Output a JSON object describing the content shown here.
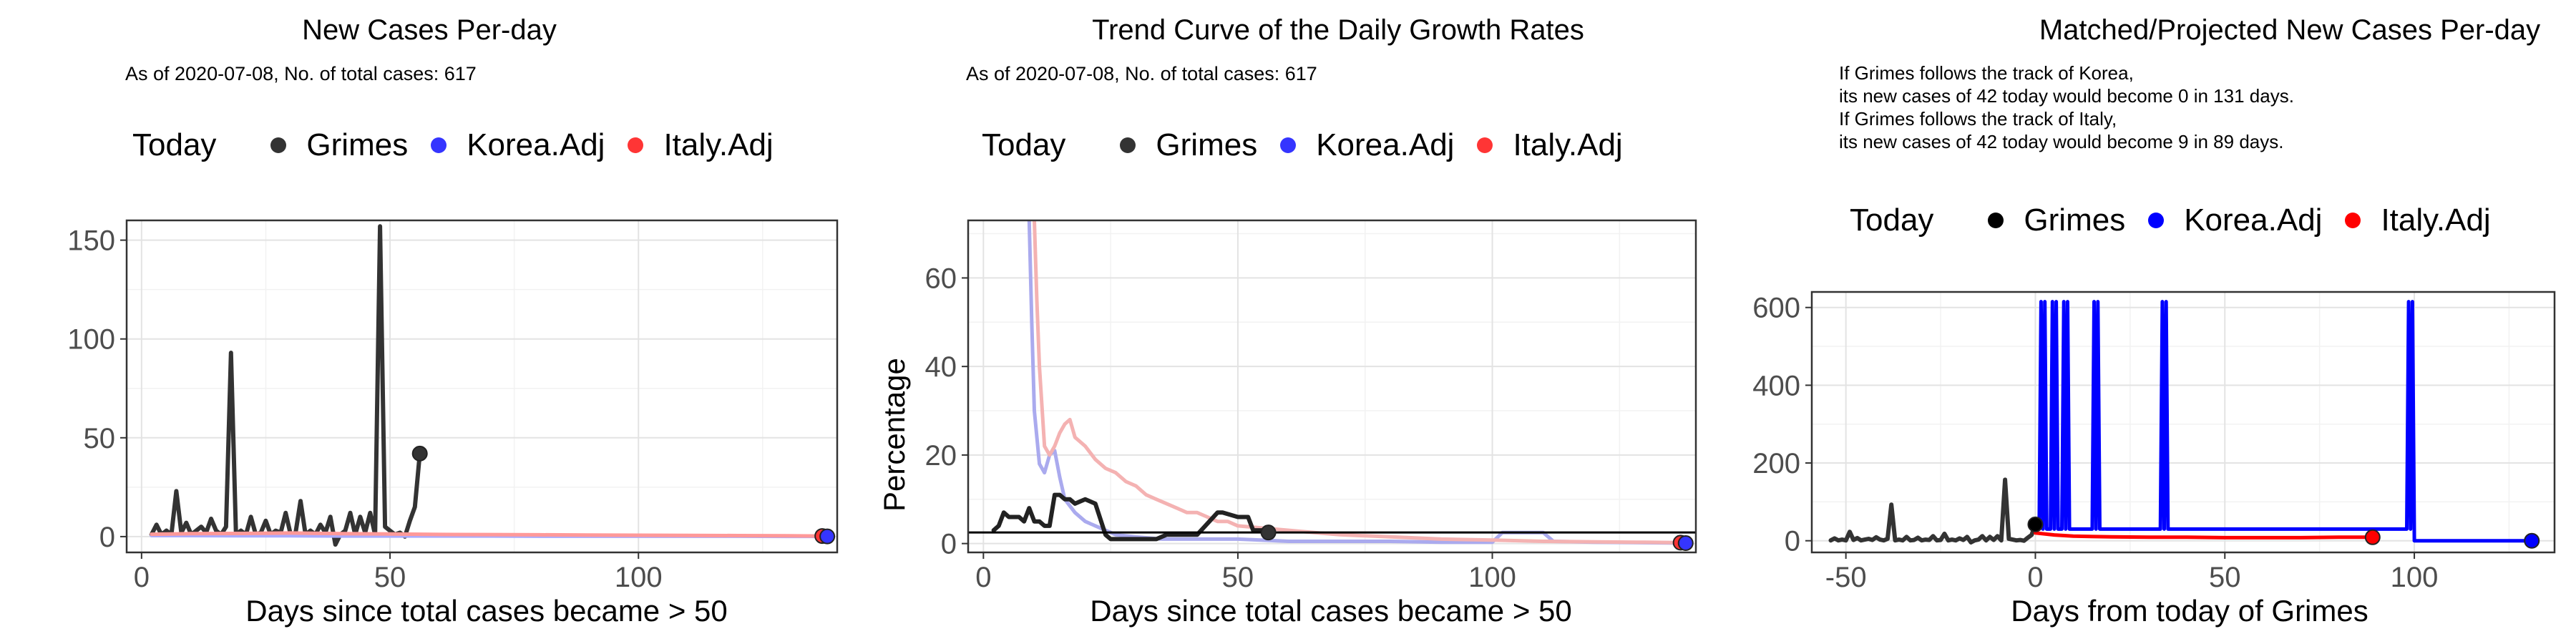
{
  "panels": [
    {
      "title": "New Cases Per-day",
      "subtitle": "As of 2020-07-08, No. of total cases: 617",
      "legend": {
        "title": "Today",
        "items": [
          {
            "label": "Grimes",
            "color": "#333333"
          },
          {
            "label": "Korea.Adj",
            "color": "#3535ff"
          },
          {
            "label": "Italy.Adj",
            "color": "#ff3535"
          }
        ]
      },
      "xlabel": "Days since total cases became > 50",
      "ylabel": ""
    },
    {
      "title": "Trend Curve of the Daily Growth Rates",
      "subtitle": "As of 2020-07-08, No. of total cases: 617",
      "legend": {
        "title": "Today",
        "items": [
          {
            "label": "Grimes",
            "color": "#333333"
          },
          {
            "label": "Korea.Adj",
            "color": "#3535ff"
          },
          {
            "label": "Italy.Adj",
            "color": "#ff3535"
          }
        ]
      },
      "xlabel": "Days since total cases became > 50",
      "ylabel": "Percentage"
    },
    {
      "title": "Matched/Projected New Cases Per-day",
      "notes": [
        "If Grimes follows the track of Korea,",
        "its new cases of 42 today would become 0 in 131 days.",
        "If Grimes follows the track of Italy,",
        "its new cases of 42 today would become 9 in 89 days."
      ],
      "legend": {
        "title": "Today",
        "items": [
          {
            "label": "Grimes",
            "color": "#000000"
          },
          {
            "label": "Korea.Adj",
            "color": "#0000ff"
          },
          {
            "label": "Italy.Adj",
            "color": "#ff0000"
          }
        ]
      },
      "xlabel": "Days from today of Grimes",
      "ylabel": ""
    }
  ],
  "chart_data": [
    {
      "type": "line",
      "title": "New Cases Per-day",
      "xlabel": "Days since total cases became > 50",
      "ylabel": "",
      "xlim": [
        -3,
        140
      ],
      "ylim": [
        -8,
        160
      ],
      "xticks": [
        0,
        50,
        100
      ],
      "yticks": [
        0,
        50,
        100,
        150
      ],
      "grid": true,
      "series": [
        {
          "name": "Grimes",
          "color": "#333333",
          "x": [
            2,
            3,
            4,
            5,
            6,
            7,
            8,
            9,
            10,
            11,
            12,
            13,
            14,
            15,
            16,
            17,
            18,
            19,
            20,
            21,
            22,
            23,
            24,
            25,
            26,
            27,
            28,
            29,
            30,
            31,
            32,
            33,
            34,
            35,
            36,
            37,
            38,
            39,
            40,
            41,
            42,
            43,
            44,
            45,
            46,
            47,
            48,
            49,
            50,
            51,
            52,
            53,
            54,
            55,
            56
          ],
          "y": [
            1,
            6,
            1,
            3,
            1,
            23,
            2,
            7,
            1,
            3,
            5,
            2,
            9,
            3,
            1,
            5,
            93,
            1,
            3,
            1,
            10,
            1,
            2,
            8,
            1,
            3,
            2,
            12,
            1,
            2,
            18,
            1,
            3,
            1,
            6,
            2,
            10,
            -4,
            1,
            3,
            12,
            1,
            10,
            2,
            12,
            1,
            157,
            5,
            3,
            1,
            2,
            0,
            8,
            15,
            42
          ]
        },
        {
          "name": "Korea.Adj",
          "color": "#aaaaff",
          "x": [
            2,
            10,
            20,
            30,
            40,
            50,
            60,
            70,
            80,
            90,
            100,
            110,
            120,
            130,
            138
          ],
          "y": [
            0.5,
            0.5,
            0.4,
            0.4,
            0.3,
            0.3,
            0.3,
            0.3,
            0.2,
            0.2,
            0.2,
            0.2,
            0.2,
            0.1,
            0.1
          ]
        },
        {
          "name": "Italy.Adj",
          "color": "#ff9999",
          "x": [
            2,
            10,
            20,
            30,
            40,
            50,
            60,
            70,
            80,
            90,
            100,
            110,
            120,
            130,
            137
          ],
          "y": [
            1.2,
            1.5,
            1.6,
            1.8,
            1.5,
            1.3,
            1.1,
            1.0,
            0.9,
            0.8,
            0.7,
            0.6,
            0.5,
            0.4,
            0.3
          ]
        }
      ],
      "points": [
        {
          "series": "Grimes",
          "x": 56,
          "y": 42,
          "color": "#333333"
        },
        {
          "series": "Italy.Adj",
          "x": 137,
          "y": 0.3,
          "color": "#ff3535"
        },
        {
          "series": "Korea.Adj",
          "x": 138,
          "y": 0.1,
          "color": "#3535ff"
        }
      ]
    },
    {
      "type": "line",
      "title": "Trend Curve of the Daily Growth Rates",
      "xlabel": "Days since total cases became > 50",
      "ylabel": "Percentage",
      "xlim": [
        -3,
        140
      ],
      "ylim": [
        -2,
        73
      ],
      "xticks": [
        0,
        50,
        100
      ],
      "yticks": [
        0,
        20,
        40,
        60
      ],
      "grid": true,
      "hline": 2.5,
      "series": [
        {
          "name": "Korea.Adj",
          "color": "#aaaaee",
          "x": [
            9,
            9.5,
            10,
            11,
            12,
            13,
            14,
            15,
            16,
            18,
            20,
            22,
            24,
            26,
            30,
            35,
            40,
            50,
            60,
            70,
            80,
            90,
            100,
            102,
            110,
            112,
            120,
            130,
            138
          ],
          "y": [
            73,
            50,
            30,
            18,
            16,
            20,
            21,
            15,
            10,
            7,
            5,
            4,
            3,
            2,
            1.5,
            1,
            1,
            1,
            0.5,
            0.5,
            0.5,
            0.3,
            0.3,
            2.5,
            2.5,
            0.5,
            0.3,
            0.2,
            0.1
          ]
        },
        {
          "name": "Italy.Adj",
          "color": "#f4b2b2",
          "x": [
            10,
            10.5,
            11,
            12,
            13,
            14,
            15,
            16,
            17,
            18,
            20,
            22,
            24,
            26,
            28,
            30,
            32,
            34,
            36,
            38,
            40,
            42,
            44,
            46,
            48,
            50,
            55,
            60,
            65,
            70,
            80,
            90,
            100,
            110,
            120,
            130,
            137
          ],
          "y": [
            73,
            55,
            40,
            22,
            20,
            22,
            25,
            27,
            28,
            24,
            22,
            19,
            17,
            16,
            14,
            13,
            11,
            10,
            9,
            8,
            7,
            7,
            6,
            5,
            5,
            4,
            3.5,
            3,
            2.5,
            2,
            1.5,
            1,
            0.8,
            0.5,
            0.4,
            0.3,
            0.2
          ]
        },
        {
          "name": "Grimes",
          "color": "#222222",
          "x": [
            2,
            3,
            4,
            5,
            7,
            8,
            9,
            10,
            11,
            12,
            13,
            14,
            15,
            16,
            17,
            18,
            20,
            22,
            24,
            25,
            26,
            28,
            30,
            34,
            36,
            38,
            42,
            46,
            47,
            50,
            52,
            53,
            54,
            55,
            56
          ],
          "y": [
            3,
            4,
            7,
            6,
            6,
            5,
            8,
            5,
            5,
            4,
            4,
            11,
            11,
            10,
            10,
            9,
            10,
            9,
            2,
            1,
            1,
            1,
            1,
            1,
            2,
            2,
            2,
            7,
            7,
            6,
            6,
            3,
            3,
            3,
            2.5
          ]
        }
      ],
      "points": [
        {
          "series": "Grimes",
          "x": 56,
          "y": 2.5,
          "color": "#333333"
        },
        {
          "series": "Italy.Adj",
          "x": 137,
          "y": 0.2,
          "color": "#ff3535"
        },
        {
          "series": "Korea.Adj",
          "x": 138,
          "y": 0.1,
          "color": "#3535ff"
        }
      ]
    },
    {
      "type": "line",
      "title": "Matched/Projected New Cases Per-day",
      "xlabel": "Days from today of Grimes",
      "ylabel": "",
      "xlim": [
        -59,
        137
      ],
      "ylim": [
        -30,
        640
      ],
      "xticks": [
        -50,
        0,
        50,
        100
      ],
      "yticks": [
        0,
        200,
        400,
        600
      ],
      "grid": true,
      "series": [
        {
          "name": "Grimes",
          "color": "#333333",
          "x": [
            -54,
            -53,
            -52,
            -51,
            -50,
            -49,
            -48,
            -47,
            -46,
            -45,
            -44,
            -43,
            -42,
            -41,
            -40,
            -39,
            -38,
            -37,
            -36,
            -35,
            -34,
            -33,
            -32,
            -31,
            -30,
            -29,
            -28,
            -27,
            -26,
            -25,
            -24,
            -23,
            -22,
            -21,
            -20,
            -19,
            -18,
            -17,
            -16,
            -15,
            -14,
            -13,
            -12,
            -11,
            -10,
            -9,
            -8,
            -7,
            -6,
            -5,
            -4,
            -3,
            -2,
            -1,
            0
          ],
          "y": [
            1,
            6,
            1,
            3,
            1,
            23,
            2,
            7,
            1,
            3,
            5,
            2,
            9,
            3,
            1,
            5,
            93,
            1,
            3,
            1,
            10,
            1,
            2,
            8,
            1,
            3,
            2,
            12,
            1,
            2,
            18,
            1,
            3,
            1,
            6,
            2,
            10,
            -4,
            1,
            3,
            12,
            1,
            10,
            2,
            12,
            1,
            157,
            5,
            3,
            1,
            2,
            0,
            8,
            15,
            42
          ]
        },
        {
          "name": "Korea.Adj",
          "color": "#0000ff",
          "x": [
            0,
            1,
            1.5,
            2,
            2.5,
            3,
            4,
            4.5,
            5,
            5.5,
            6,
            7,
            7.5,
            8,
            8.5,
            9,
            15,
            15.5,
            16,
            16.5,
            17,
            33,
            33.5,
            34,
            34.5,
            35,
            98,
            98.5,
            99,
            99.5,
            100,
            131
          ],
          "y": [
            30,
            30,
            615,
            30,
            615,
            30,
            30,
            615,
            30,
            615,
            30,
            30,
            615,
            30,
            615,
            30,
            30,
            615,
            30,
            615,
            30,
            30,
            615,
            30,
            615,
            30,
            30,
            615,
            30,
            615,
            0,
            0
          ]
        },
        {
          "name": "Italy.Adj",
          "color": "#ff0000",
          "x": [
            0,
            5,
            10,
            20,
            30,
            40,
            50,
            60,
            70,
            80,
            89
          ],
          "y": [
            20,
            15,
            12,
            10,
            9,
            9,
            8,
            8,
            8,
            9,
            9
          ]
        }
      ],
      "points": [
        {
          "series": "Grimes",
          "x": 0,
          "y": 42,
          "color": "#000000"
        },
        {
          "series": "Italy.Adj",
          "x": 89,
          "y": 9,
          "color": "#ff0000"
        },
        {
          "series": "Korea.Adj",
          "x": 131,
          "y": 0,
          "color": "#0000ff"
        }
      ]
    }
  ]
}
